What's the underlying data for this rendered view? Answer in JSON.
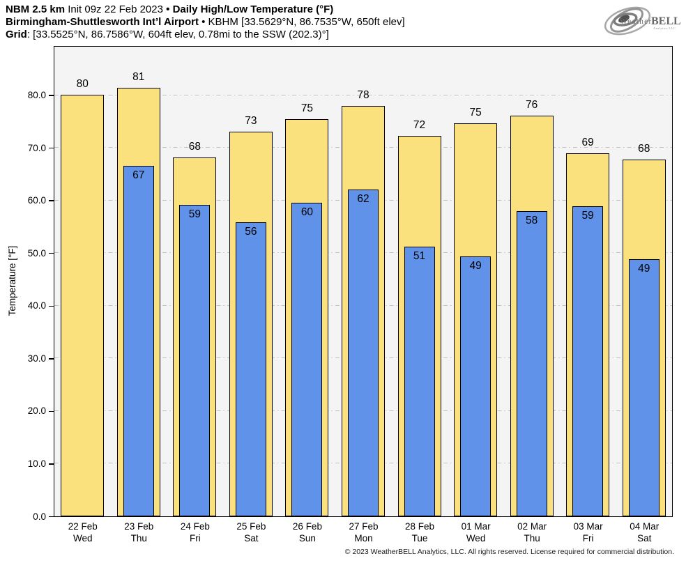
{
  "header": {
    "model": "NBM 2.5 km",
    "init": " Init 09z 22 Feb 2023 ",
    "bullet1": "• ",
    "product": "Daily High/Low Temperature (°F)",
    "station": "Birmingham-Shuttlesworth Int’l Airport",
    "bullet2": " • ",
    "station_meta": "KBHM [33.5629°N, 86.7535°W, 650ft elev]",
    "grid_label": "Grid",
    "grid_value": ": [33.5525°N, 86.7586°W, 604ft elev, 0.78mi to the SSW (202.3)°]"
  },
  "logo": {
    "weather": "Weather",
    "bell": "BELL",
    "sub": "Analytics LLC"
  },
  "chart_data": {
    "type": "bar",
    "title": "Daily High/Low Temperature (°F)",
    "xlabel": "",
    "ylabel": "Temperature [°F]",
    "ylim": [
      0,
      89.2
    ],
    "yticks": [
      "0.0",
      "10.0",
      "20.0",
      "30.0",
      "40.0",
      "50.0",
      "60.0",
      "70.0",
      "80.0"
    ],
    "grid": "horizontal dash-dot gridlines every 10°F",
    "legend": "none",
    "categories": [
      {
        "date": "22 Feb",
        "day": "Wed"
      },
      {
        "date": "23 Feb",
        "day": "Thu"
      },
      {
        "date": "24 Feb",
        "day": "Fri"
      },
      {
        "date": "25 Feb",
        "day": "Sat"
      },
      {
        "date": "26 Feb",
        "day": "Sun"
      },
      {
        "date": "27 Feb",
        "day": "Mon"
      },
      {
        "date": "28 Feb",
        "day": "Tue"
      },
      {
        "date": "01 Mar",
        "day": "Wed"
      },
      {
        "date": "02 Mar",
        "day": "Thu"
      },
      {
        "date": "03 Mar",
        "day": "Fri"
      },
      {
        "date": "04 Mar",
        "day": "Sat"
      }
    ],
    "series": [
      {
        "name": "Daily High",
        "values": [
          80,
          81,
          68,
          73,
          75,
          78,
          72,
          75,
          76,
          69,
          68
        ],
        "plotted": [
          80.1,
          81.4,
          68.1,
          73.1,
          75.4,
          78.0,
          72.2,
          74.7,
          76.1,
          68.9,
          67.7
        ]
      },
      {
        "name": "Daily Low",
        "values": [
          null,
          67,
          59,
          56,
          60,
          62,
          51,
          49,
          58,
          59,
          49
        ],
        "plotted": [
          null,
          66.6,
          59.2,
          55.8,
          59.6,
          62.1,
          51.2,
          49.4,
          58.0,
          58.9,
          48.8
        ]
      }
    ],
    "colors": {
      "high": "#FBE07E",
      "low": "#6192E9",
      "bar_border": "#000000",
      "plot_bg": "#F4F4F4",
      "gridline": "#C2C2C2",
      "axis": "#000000"
    }
  },
  "footer": {
    "copyright": "© 2023 WeatherBELL Analytics, LLC. All rights reserved. License required for commercial distribution."
  }
}
